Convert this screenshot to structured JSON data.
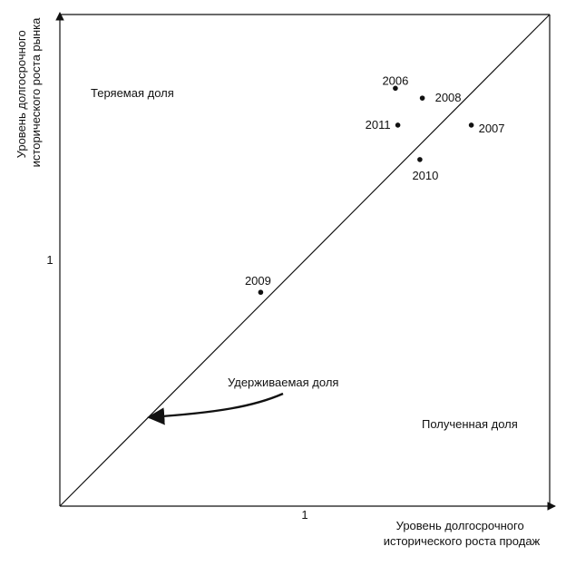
{
  "chart_data": {
    "type": "scatter",
    "xlabel_lines": [
      "Уровень долгосрочного",
      "исторического роста продаж"
    ],
    "ylabel_lines": [
      "Уровень долгосрочного",
      "исторического роста рынка"
    ],
    "x_tick": "1",
    "y_tick": "1",
    "regions": {
      "losing": "Теряемая доля",
      "holding": "Удерживаемая доля",
      "gaining": "Полученная доля"
    },
    "points": [
      {
        "label": "2006",
        "x": 1.37,
        "y": 1.7
      },
      {
        "label": "2008",
        "x": 1.48,
        "y": 1.66
      },
      {
        "label": "2011",
        "x": 1.38,
        "y": 1.55
      },
      {
        "label": "2007",
        "x": 1.68,
        "y": 1.55
      },
      {
        "label": "2010",
        "x": 1.47,
        "y": 1.41
      },
      {
        "label": "2009",
        "x": 0.82,
        "y": 0.87
      }
    ]
  }
}
